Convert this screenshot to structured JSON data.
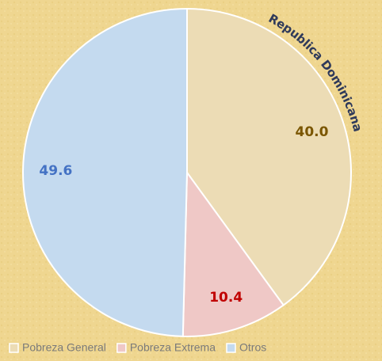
{
  "chart_data": {
    "type": "pie",
    "title": "Republica Dominicana",
    "categories": [
      "Pobreza General",
      "Pobreza Extrema",
      "Otros"
    ],
    "values": [
      40.0,
      10.4,
      49.6
    ],
    "value_labels": [
      "40.0",
      "10.4",
      "49.6"
    ],
    "colors": [
      "#ecdcb5",
      "#efc8c6",
      "#c4daef"
    ],
    "label_colors": [
      "#7a5600",
      "#c00000",
      "#4472c4"
    ],
    "legend": "bottom"
  }
}
